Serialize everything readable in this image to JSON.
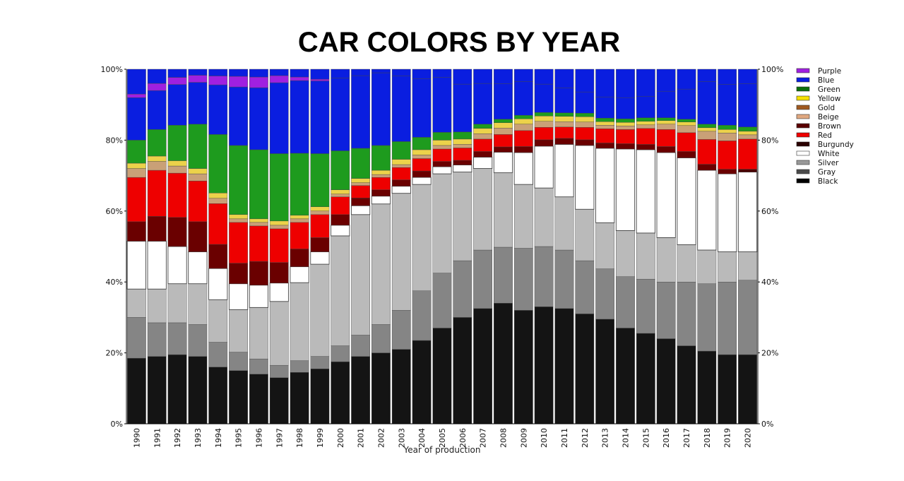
{
  "chart_data": {
    "type": "bar",
    "stacked": true,
    "title": "CAR COLORS BY YEAR",
    "xlabel": "Year of production",
    "ylabel": "",
    "ylim": [
      0,
      100
    ],
    "yticks": [
      "0%",
      "20%",
      "40%",
      "60%",
      "80%",
      "100%"
    ],
    "legend_position": "right",
    "categories": [
      "1990",
      "1991",
      "1992",
      "1993",
      "1994",
      "1995",
      "1996",
      "1997",
      "1998",
      "1999",
      "2000",
      "2001",
      "2002",
      "2003",
      "2004",
      "2005",
      "2006",
      "2007",
      "2008",
      "2009",
      "2010",
      "2011",
      "2012",
      "2013",
      "2014",
      "2015",
      "2016",
      "2017",
      "2018",
      "2019",
      "2020"
    ],
    "series": [
      {
        "name": "Black",
        "color": "#141414",
        "values": [
          18.5,
          19,
          19.5,
          19,
          16,
          15,
          14,
          13,
          14.5,
          15.5,
          17.5,
          19,
          20,
          21,
          23.5,
          27,
          30,
          32.5,
          34,
          32,
          33,
          32.5,
          31,
          29.5,
          27,
          25.5,
          24,
          22,
          20.5,
          19.5,
          19.5
        ]
      },
      {
        "name": "Gray",
        "color": "#858585",
        "values": [
          11.5,
          9.5,
          9,
          9,
          7,
          5.2,
          4.3,
          3.5,
          3.3,
          3.5,
          4.5,
          6,
          8,
          11,
          14,
          15.5,
          16,
          16.5,
          15.8,
          17.5,
          17,
          16.5,
          15,
          14.2,
          14.5,
          15.3,
          16,
          18,
          19,
          20.5,
          21
        ]
      },
      {
        "name": "Silver",
        "color": "#bababa",
        "values": [
          8,
          9.5,
          11,
          11.5,
          12,
          12,
          14.5,
          18,
          22,
          26,
          31,
          34,
          34,
          33,
          30,
          28,
          25,
          23,
          21,
          18,
          16.5,
          15,
          14.5,
          13,
          13,
          13,
          12.5,
          10.5,
          9.5,
          8.5,
          8
        ]
      },
      {
        "name": "White",
        "color": "#ffffff",
        "values": [
          13.5,
          13.5,
          10.5,
          9,
          8.8,
          7.3,
          6.3,
          5.2,
          4.5,
          3.5,
          3,
          2.5,
          2.2,
          2,
          2,
          2,
          2,
          3.2,
          5.8,
          9,
          11.8,
          14.8,
          18,
          21,
          23,
          23.5,
          24,
          24.5,
          22.5,
          22,
          22.5
        ]
      },
      {
        "name": "Burgundy",
        "color": "#4a0000",
        "values": [
          0,
          0,
          0,
          0,
          0,
          0,
          0,
          0,
          0,
          0,
          0,
          0,
          0,
          0,
          0,
          0,
          0,
          0,
          0,
          0,
          0,
          0,
          0,
          0,
          0,
          0,
          0,
          0,
          0,
          0,
          0.8
        ]
      },
      {
        "name": "Brown",
        "color": "#6a0000",
        "values": [
          5.5,
          7,
          8.2,
          8.5,
          6.8,
          5.8,
          6.7,
          5.8,
          5,
          4,
          3,
          2.2,
          1.8,
          1.8,
          1.8,
          1.5,
          1.3,
          1.6,
          1.5,
          1.7,
          1.8,
          1.7,
          1.6,
          1.5,
          1.5,
          1.5,
          1.7,
          1.8,
          1.7,
          1.3,
          0
        ]
      },
      {
        "name": "Red",
        "color": "#ee0000",
        "values": [
          12.5,
          13,
          12.5,
          11.5,
          11.5,
          11.5,
          10,
          9.5,
          7.5,
          6.5,
          5,
          3.5,
          3.5,
          3.5,
          3.5,
          3.5,
          3.5,
          3.5,
          3.5,
          4.5,
          3.5,
          3.2,
          3.5,
          4,
          4,
          4.5,
          4.8,
          5.3,
          7,
          8,
          8.5
        ]
      },
      {
        "name": "Beige",
        "color": "#c9a077",
        "values": [
          2.5,
          2.5,
          2,
          2,
          1.5,
          1,
          1,
          1,
          1,
          1,
          0.8,
          0.8,
          0.8,
          0.8,
          1,
          1,
          1,
          1.5,
          1.8,
          1.8,
          1.7,
          1.5,
          1.5,
          1,
          1,
          1,
          1.5,
          2,
          2.3,
          2.2,
          1.2
        ]
      },
      {
        "name": "Gold",
        "color": "#d9a83a",
        "values": [
          0,
          0,
          0,
          0,
          0,
          0,
          0,
          0,
          0,
          0,
          0,
          0,
          0,
          0,
          0,
          0,
          0,
          0,
          0,
          0,
          0,
          0,
          0,
          0,
          0,
          0,
          0,
          0,
          0,
          0,
          0
        ]
      },
      {
        "name": "Yellow",
        "color": "#ecd24a",
        "values": [
          1.5,
          1.5,
          1.5,
          1.5,
          1.5,
          1.2,
          1,
          1.2,
          1,
          1.2,
          1.2,
          1.2,
          1.2,
          1.5,
          1.5,
          1.5,
          1.5,
          1.5,
          1.5,
          1.5,
          1.5,
          1.5,
          1.5,
          1,
          1,
          1,
          1,
          1,
          1,
          1,
          1
        ]
      },
      {
        "name": "Green",
        "color": "#1e9b1e",
        "values": [
          6.5,
          7.5,
          10,
          12.5,
          16.5,
          19.5,
          19.5,
          19,
          17.5,
          15,
          11,
          8.5,
          7,
          5,
          3.5,
          2.2,
          2,
          1.2,
          1,
          1,
          1,
          1,
          1,
          1,
          1,
          1,
          0.8,
          0.8,
          1,
          1.2,
          1.2
        ]
      },
      {
        "name": "Blue",
        "color": "#0a1ee0",
        "values": [
          12,
          11,
          11.5,
          11.8,
          14,
          16.5,
          17.5,
          20,
          20.5,
          20.5,
          20.5,
          20.5,
          20.5,
          18.5,
          16.5,
          15.5,
          13.5,
          11.5,
          10,
          9.5,
          8,
          7,
          6,
          6,
          6,
          6,
          7.5,
          8.5,
          12,
          11.5,
          12.2
        ]
      },
      {
        "name": "Purple",
        "color": "#a020e0",
        "values": [
          1,
          2,
          2,
          2,
          2.5,
          3,
          3,
          2,
          1,
          0.5,
          0,
          0,
          0,
          0,
          0,
          0,
          0,
          0,
          0,
          0,
          0,
          0,
          0,
          0,
          0,
          0,
          0,
          0,
          0,
          0,
          0
        ]
      }
    ],
    "decorations": [
      {
        "series": "Beige",
        "color": "#e8c3a0"
      },
      {
        "series": "Gold",
        "color": "#a05a20"
      },
      {
        "series": "Yellow",
        "color": "#f5e000"
      }
    ],
    "legend": [
      {
        "name": "Purple",
        "color": "#a020e0"
      },
      {
        "name": "Blue",
        "color": "#0a1ee0"
      },
      {
        "name": "Green",
        "color": "#0a6e0a"
      },
      {
        "name": "Yellow",
        "color": "#f5e000"
      },
      {
        "name": "Gold",
        "color": "#a05a20"
      },
      {
        "name": "Beige",
        "color": "#e0a880"
      },
      {
        "name": "Brown",
        "color": "#5a0000"
      },
      {
        "name": "Red",
        "color": "#ee0000"
      },
      {
        "name": "Burgundy",
        "color": "#2a0000"
      },
      {
        "name": "White",
        "color": "#ffffff"
      },
      {
        "name": "Silver",
        "color": "#999999"
      },
      {
        "name": "Gray",
        "color": "#4a4a4a"
      },
      {
        "name": "Black",
        "color": "#000000"
      }
    ]
  }
}
